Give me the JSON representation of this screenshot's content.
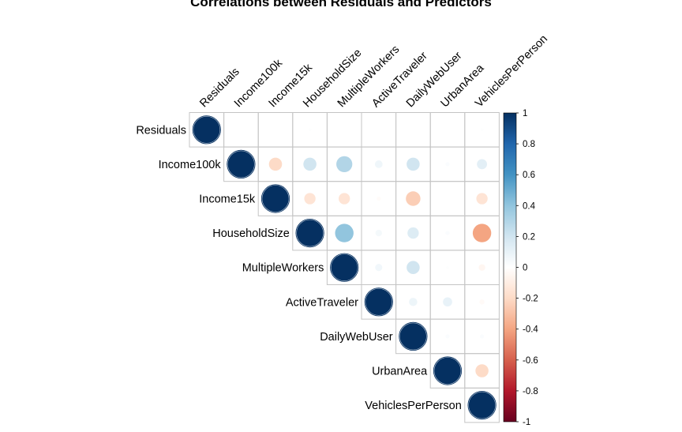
{
  "chart_data": {
    "type": "heatmap",
    "style": "corrplot-circle-upper",
    "title": "Correlations between Residuals and Predictors",
    "variables": [
      "Residuals",
      "Income100k",
      "Income15k",
      "HouseholdSize",
      "MultipleWorkers",
      "ActiveTraveler",
      "DailyWebUser",
      "UrbanArea",
      "VehiclesPerPerson"
    ],
    "matrix": [
      [
        1,
        0.0,
        0.0,
        0.01,
        0.0,
        0.0,
        0.0,
        0.0,
        0.01
      ],
      [
        0.0,
        1,
        -0.2,
        0.2,
        0.3,
        0.07,
        0.2,
        0.02,
        0.12
      ],
      [
        0.0,
        -0.2,
        1,
        -0.15,
        -0.15,
        -0.02,
        -0.25,
        0.0,
        -0.15
      ],
      [
        0.01,
        0.2,
        -0.15,
        1,
        0.4,
        0.05,
        0.15,
        0.02,
        -0.4
      ],
      [
        0.0,
        0.3,
        -0.15,
        0.4,
        1,
        0.06,
        0.2,
        0.01,
        -0.05
      ],
      [
        0.0,
        0.07,
        -0.02,
        0.05,
        0.06,
        1,
        0.08,
        0.1,
        -0.03
      ],
      [
        0.0,
        0.2,
        -0.25,
        0.15,
        0.2,
        0.08,
        1,
        0.02,
        0.02
      ],
      [
        0.0,
        0.02,
        0.0,
        0.02,
        0.01,
        0.1,
        0.02,
        1,
        -0.2
      ],
      [
        0.01,
        0.12,
        -0.15,
        -0.4,
        -0.05,
        -0.03,
        0.02,
        -0.2,
        1
      ]
    ],
    "legend": {
      "range": [
        -1,
        1
      ],
      "ticks": [
        "1",
        "0.8",
        "0.6",
        "0.4",
        "0.2",
        "0",
        "-0.2",
        "-0.4",
        "-0.6",
        "-0.8",
        "-1"
      ],
      "colors": [
        "#67001F",
        "#B2182B",
        "#D6604D",
        "#F4A582",
        "#FDDBC7",
        "#FFFFFF",
        "#D1E5F0",
        "#92C5DE",
        "#4393C3",
        "#2166AC",
        "#053061"
      ],
      "placement": "right"
    },
    "grid": true
  }
}
